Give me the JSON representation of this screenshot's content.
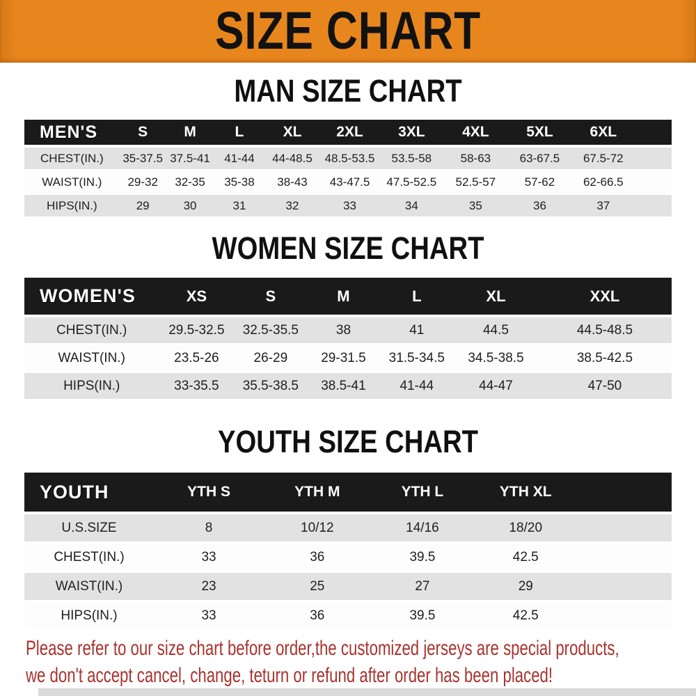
{
  "banner": {
    "title": "SIZE CHART"
  },
  "colors": {
    "banner_bg": "#E8861E",
    "header_bar_bg": "#1A1A1A",
    "row_alt_bg": "#E2E2E2",
    "footnote_text": "#A8332E"
  },
  "sections": [
    {
      "id": "men",
      "heading": "MAN SIZE CHART",
      "table": {
        "corner_label": "MEN'S",
        "size_columns": [
          "S",
          "M",
          "L",
          "XL",
          "2XL",
          "3XL",
          "4XL",
          "5XL",
          "6XL"
        ],
        "rows": [
          {
            "label": "CHEST(IN.)",
            "values": [
              "35-37.5",
              "37.5-41",
              "41-44",
              "44-48.5",
              "48.5-53.5",
              "53.5-58",
              "58-63",
              "63-67.5",
              "67.5-72"
            ]
          },
          {
            "label": "WAIST(IN.)",
            "values": [
              "29-32",
              "32-35",
              "35-38",
              "38-43",
              "43-47.5",
              "47.5-52.5",
              "52.5-57",
              "57-62",
              "62-66.5"
            ]
          },
          {
            "label": "HIPS(IN.)",
            "values": [
              "29",
              "30",
              "31",
              "32",
              "33",
              "34",
              "35",
              "36",
              "37"
            ]
          }
        ]
      }
    },
    {
      "id": "women",
      "heading": "WOMEN SIZE CHART",
      "table": {
        "corner_label": "WOMEN'S",
        "size_columns": [
          "XS",
          "S",
          "M",
          "L",
          "XL",
          "XXL"
        ],
        "rows": [
          {
            "label": "CHEST(IN.)",
            "values": [
              "29.5-32.5",
              "32.5-35.5",
              "38",
              "41",
              "44.5",
              "44.5-48.5"
            ]
          },
          {
            "label": "WAIST(IN.)",
            "values": [
              "23.5-26",
              "26-29",
              "29-31.5",
              "31.5-34.5",
              "34.5-38.5",
              "38.5-42.5"
            ]
          },
          {
            "label": "HIPS(IN.)",
            "values": [
              "33-35.5",
              "35.5-38.5",
              "38.5-41",
              "41-44",
              "44-47",
              "47-50"
            ]
          }
        ]
      }
    },
    {
      "id": "youth",
      "heading": "YOUTH SIZE CHART",
      "table": {
        "corner_label": "YOUTH",
        "size_columns": [
          "YTH S",
          "YTH M",
          "YTH L",
          "YTH XL"
        ],
        "rows": [
          {
            "label": "U.S.SIZE",
            "values": [
              "8",
              "10/12",
              "14/16",
              "18/20"
            ]
          },
          {
            "label": "CHEST(IN.)",
            "values": [
              "33",
              "36",
              "39.5",
              "42.5"
            ]
          },
          {
            "label": "WAIST(IN.)",
            "values": [
              "23",
              "25",
              "27",
              "29"
            ]
          },
          {
            "label": "HIPS(IN.)",
            "values": [
              "33",
              "36",
              "39.5",
              "42.5"
            ]
          }
        ]
      }
    }
  ],
  "footnote": {
    "lines": [
      "Please refer to our size chart before order,the customized jerseys are special products,",
      "we don't accept cancel, change, teturn or refund after order has been placed!"
    ]
  }
}
